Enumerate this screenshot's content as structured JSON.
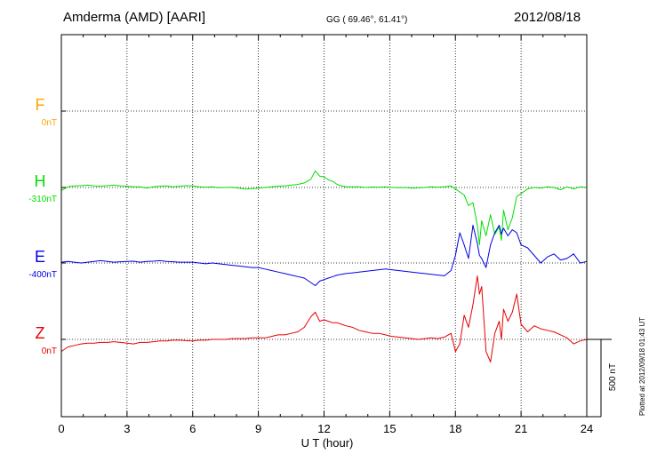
{
  "header": {
    "station": "Amderma (AMD)  [AARI]",
    "coords": "GG ( 69.46°,  61.41°)",
    "date": "2012/08/18"
  },
  "plotted_note": "Plotted at 2012/09/18 01:43 UT",
  "chart_data": {
    "type": "line",
    "xlabel": "U T (hour)",
    "xlim": [
      0,
      24
    ],
    "xticks": [
      0,
      3,
      6,
      9,
      12,
      15,
      18,
      21,
      24
    ],
    "scale_bar": {
      "label": "500 nT",
      "value_nT": 500
    },
    "series": [
      {
        "name": "F",
        "baseline_label": "0nT",
        "color": "#ffa500",
        "band_index": 0,
        "x": [],
        "y": []
      },
      {
        "name": "H",
        "baseline_label": "-310nT",
        "color": "#00e000",
        "band_index": 1,
        "x": [
          0.0,
          0.3,
          0.6,
          0.9,
          1.2,
          1.5,
          1.8,
          2.1,
          2.4,
          2.7,
          3.0,
          3.3,
          3.6,
          3.9,
          4.2,
          4.5,
          4.8,
          5.1,
          5.4,
          5.7,
          6.0,
          6.3,
          6.6,
          6.9,
          7.2,
          7.5,
          7.8,
          8.1,
          8.4,
          8.7,
          9.0,
          9.3,
          9.6,
          9.9,
          10.2,
          10.5,
          10.8,
          11.1,
          11.4,
          11.6,
          11.8,
          12.0,
          12.2,
          12.4,
          12.6,
          12.8,
          13.0,
          13.3,
          13.6,
          13.9,
          14.2,
          14.5,
          14.8,
          15.1,
          15.4,
          15.7,
          16.0,
          16.3,
          16.6,
          16.9,
          17.2,
          17.5,
          17.8,
          18.0,
          18.2,
          18.4,
          18.6,
          18.8,
          19.0,
          19.1,
          19.2,
          19.4,
          19.6,
          19.8,
          20.0,
          20.1,
          20.2,
          20.4,
          20.6,
          20.8,
          21.0,
          21.3,
          21.6,
          21.9,
          22.2,
          22.5,
          22.8,
          23.1,
          23.4,
          23.7,
          24.0
        ],
        "y": [
          -20,
          5,
          10,
          12,
          15,
          10,
          8,
          12,
          15,
          10,
          8,
          5,
          5,
          -5,
          5,
          8,
          10,
          5,
          8,
          12,
          10,
          5,
          2,
          5,
          -2,
          0,
          2,
          -5,
          -10,
          -8,
          -5,
          0,
          5,
          8,
          10,
          15,
          20,
          30,
          55,
          110,
          75,
          70,
          50,
          40,
          20,
          10,
          5,
          5,
          5,
          0,
          3,
          2,
          5,
          0,
          -2,
          0,
          -5,
          -3,
          0,
          5,
          2,
          5,
          10,
          -10,
          -30,
          -50,
          -120,
          -100,
          -250,
          -380,
          -220,
          -320,
          -180,
          -310,
          -260,
          -350,
          -150,
          -280,
          -200,
          -60,
          -40,
          -10,
          0,
          -5,
          5,
          0,
          -15,
          5,
          -10,
          5,
          0
        ]
      },
      {
        "name": "E",
        "baseline_label": "-400nT",
        "color": "#0000e6",
        "band_index": 2,
        "x": [
          0.0,
          0.3,
          0.6,
          0.9,
          1.2,
          1.5,
          1.8,
          2.1,
          2.4,
          2.7,
          3.0,
          3.3,
          3.6,
          3.9,
          4.2,
          4.5,
          4.8,
          5.1,
          5.4,
          5.7,
          6.0,
          6.3,
          6.6,
          6.9,
          7.2,
          7.5,
          7.8,
          8.1,
          8.4,
          8.7,
          9.0,
          9.3,
          9.6,
          9.9,
          10.2,
          10.5,
          10.8,
          11.1,
          11.4,
          11.6,
          11.8,
          12.0,
          12.2,
          12.4,
          12.6,
          12.8,
          13.0,
          13.3,
          13.6,
          13.9,
          14.2,
          14.5,
          14.8,
          15.1,
          15.4,
          15.7,
          16.0,
          16.3,
          16.6,
          16.9,
          17.2,
          17.5,
          17.8,
          18.0,
          18.2,
          18.4,
          18.6,
          18.8,
          19.0,
          19.1,
          19.2,
          19.4,
          19.6,
          19.8,
          20.0,
          20.1,
          20.2,
          20.4,
          20.6,
          20.8,
          21.0,
          21.3,
          21.6,
          21.9,
          22.2,
          22.5,
          22.8,
          23.1,
          23.4,
          23.7,
          24.0
        ],
        "y": [
          5,
          10,
          5,
          0,
          5,
          10,
          15,
          10,
          5,
          8,
          10,
          12,
          5,
          10,
          12,
          15,
          10,
          8,
          5,
          5,
          5,
          0,
          -5,
          0,
          -5,
          -10,
          -15,
          -20,
          -25,
          -30,
          -30,
          -40,
          -50,
          -60,
          -70,
          -80,
          -90,
          -100,
          -130,
          -150,
          -120,
          -110,
          -100,
          -90,
          -80,
          -75,
          -70,
          -65,
          -60,
          -55,
          -50,
          -45,
          -40,
          -45,
          -50,
          -55,
          -60,
          -65,
          -70,
          -75,
          -80,
          -85,
          -50,
          50,
          200,
          120,
          30,
          250,
          130,
          50,
          30,
          -30,
          120,
          200,
          250,
          190,
          230,
          180,
          220,
          200,
          120,
          100,
          50,
          0,
          40,
          60,
          20,
          30,
          60,
          0,
          10
        ]
      },
      {
        "name": "Z",
        "baseline_label": "0nT",
        "color": "#e60000",
        "band_index": 3,
        "x": [
          0.0,
          0.3,
          0.6,
          0.9,
          1.2,
          1.5,
          1.8,
          2.1,
          2.4,
          2.7,
          3.0,
          3.3,
          3.6,
          3.9,
          4.2,
          4.5,
          4.8,
          5.1,
          5.4,
          5.7,
          6.0,
          6.3,
          6.6,
          6.9,
          7.2,
          7.5,
          7.8,
          8.1,
          8.4,
          8.7,
          9.0,
          9.3,
          9.6,
          9.9,
          10.2,
          10.5,
          10.8,
          11.1,
          11.4,
          11.6,
          11.8,
          12.0,
          12.2,
          12.4,
          12.6,
          12.8,
          13.0,
          13.3,
          13.6,
          13.9,
          14.2,
          14.5,
          14.8,
          15.1,
          15.4,
          15.7,
          16.0,
          16.3,
          16.6,
          16.9,
          17.2,
          17.5,
          17.8,
          18.0,
          18.2,
          18.4,
          18.6,
          18.8,
          19.0,
          19.1,
          19.2,
          19.4,
          19.6,
          19.8,
          20.0,
          20.1,
          20.2,
          20.4,
          20.6,
          20.8,
          21.0,
          21.3,
          21.6,
          21.9,
          22.2,
          22.5,
          22.8,
          23.1,
          23.4,
          23.7,
          24.0
        ],
        "y": [
          -80,
          -50,
          -40,
          -30,
          -25,
          -25,
          -20,
          -20,
          -15,
          -20,
          -25,
          -30,
          -20,
          -20,
          -15,
          -10,
          -10,
          -5,
          -5,
          -8,
          -10,
          -5,
          -5,
          0,
          0,
          0,
          5,
          5,
          5,
          10,
          10,
          10,
          20,
          30,
          30,
          40,
          50,
          80,
          150,
          180,
          120,
          130,
          120,
          110,
          110,
          100,
          90,
          80,
          60,
          50,
          40,
          40,
          30,
          20,
          15,
          10,
          5,
          0,
          5,
          10,
          5,
          15,
          40,
          -80,
          -30,
          160,
          80,
          230,
          420,
          300,
          350,
          -80,
          -150,
          40,
          120,
          0,
          200,
          120,
          180,
          300,
          100,
          50,
          90,
          70,
          60,
          50,
          30,
          10,
          -30,
          -10,
          0
        ]
      }
    ]
  }
}
